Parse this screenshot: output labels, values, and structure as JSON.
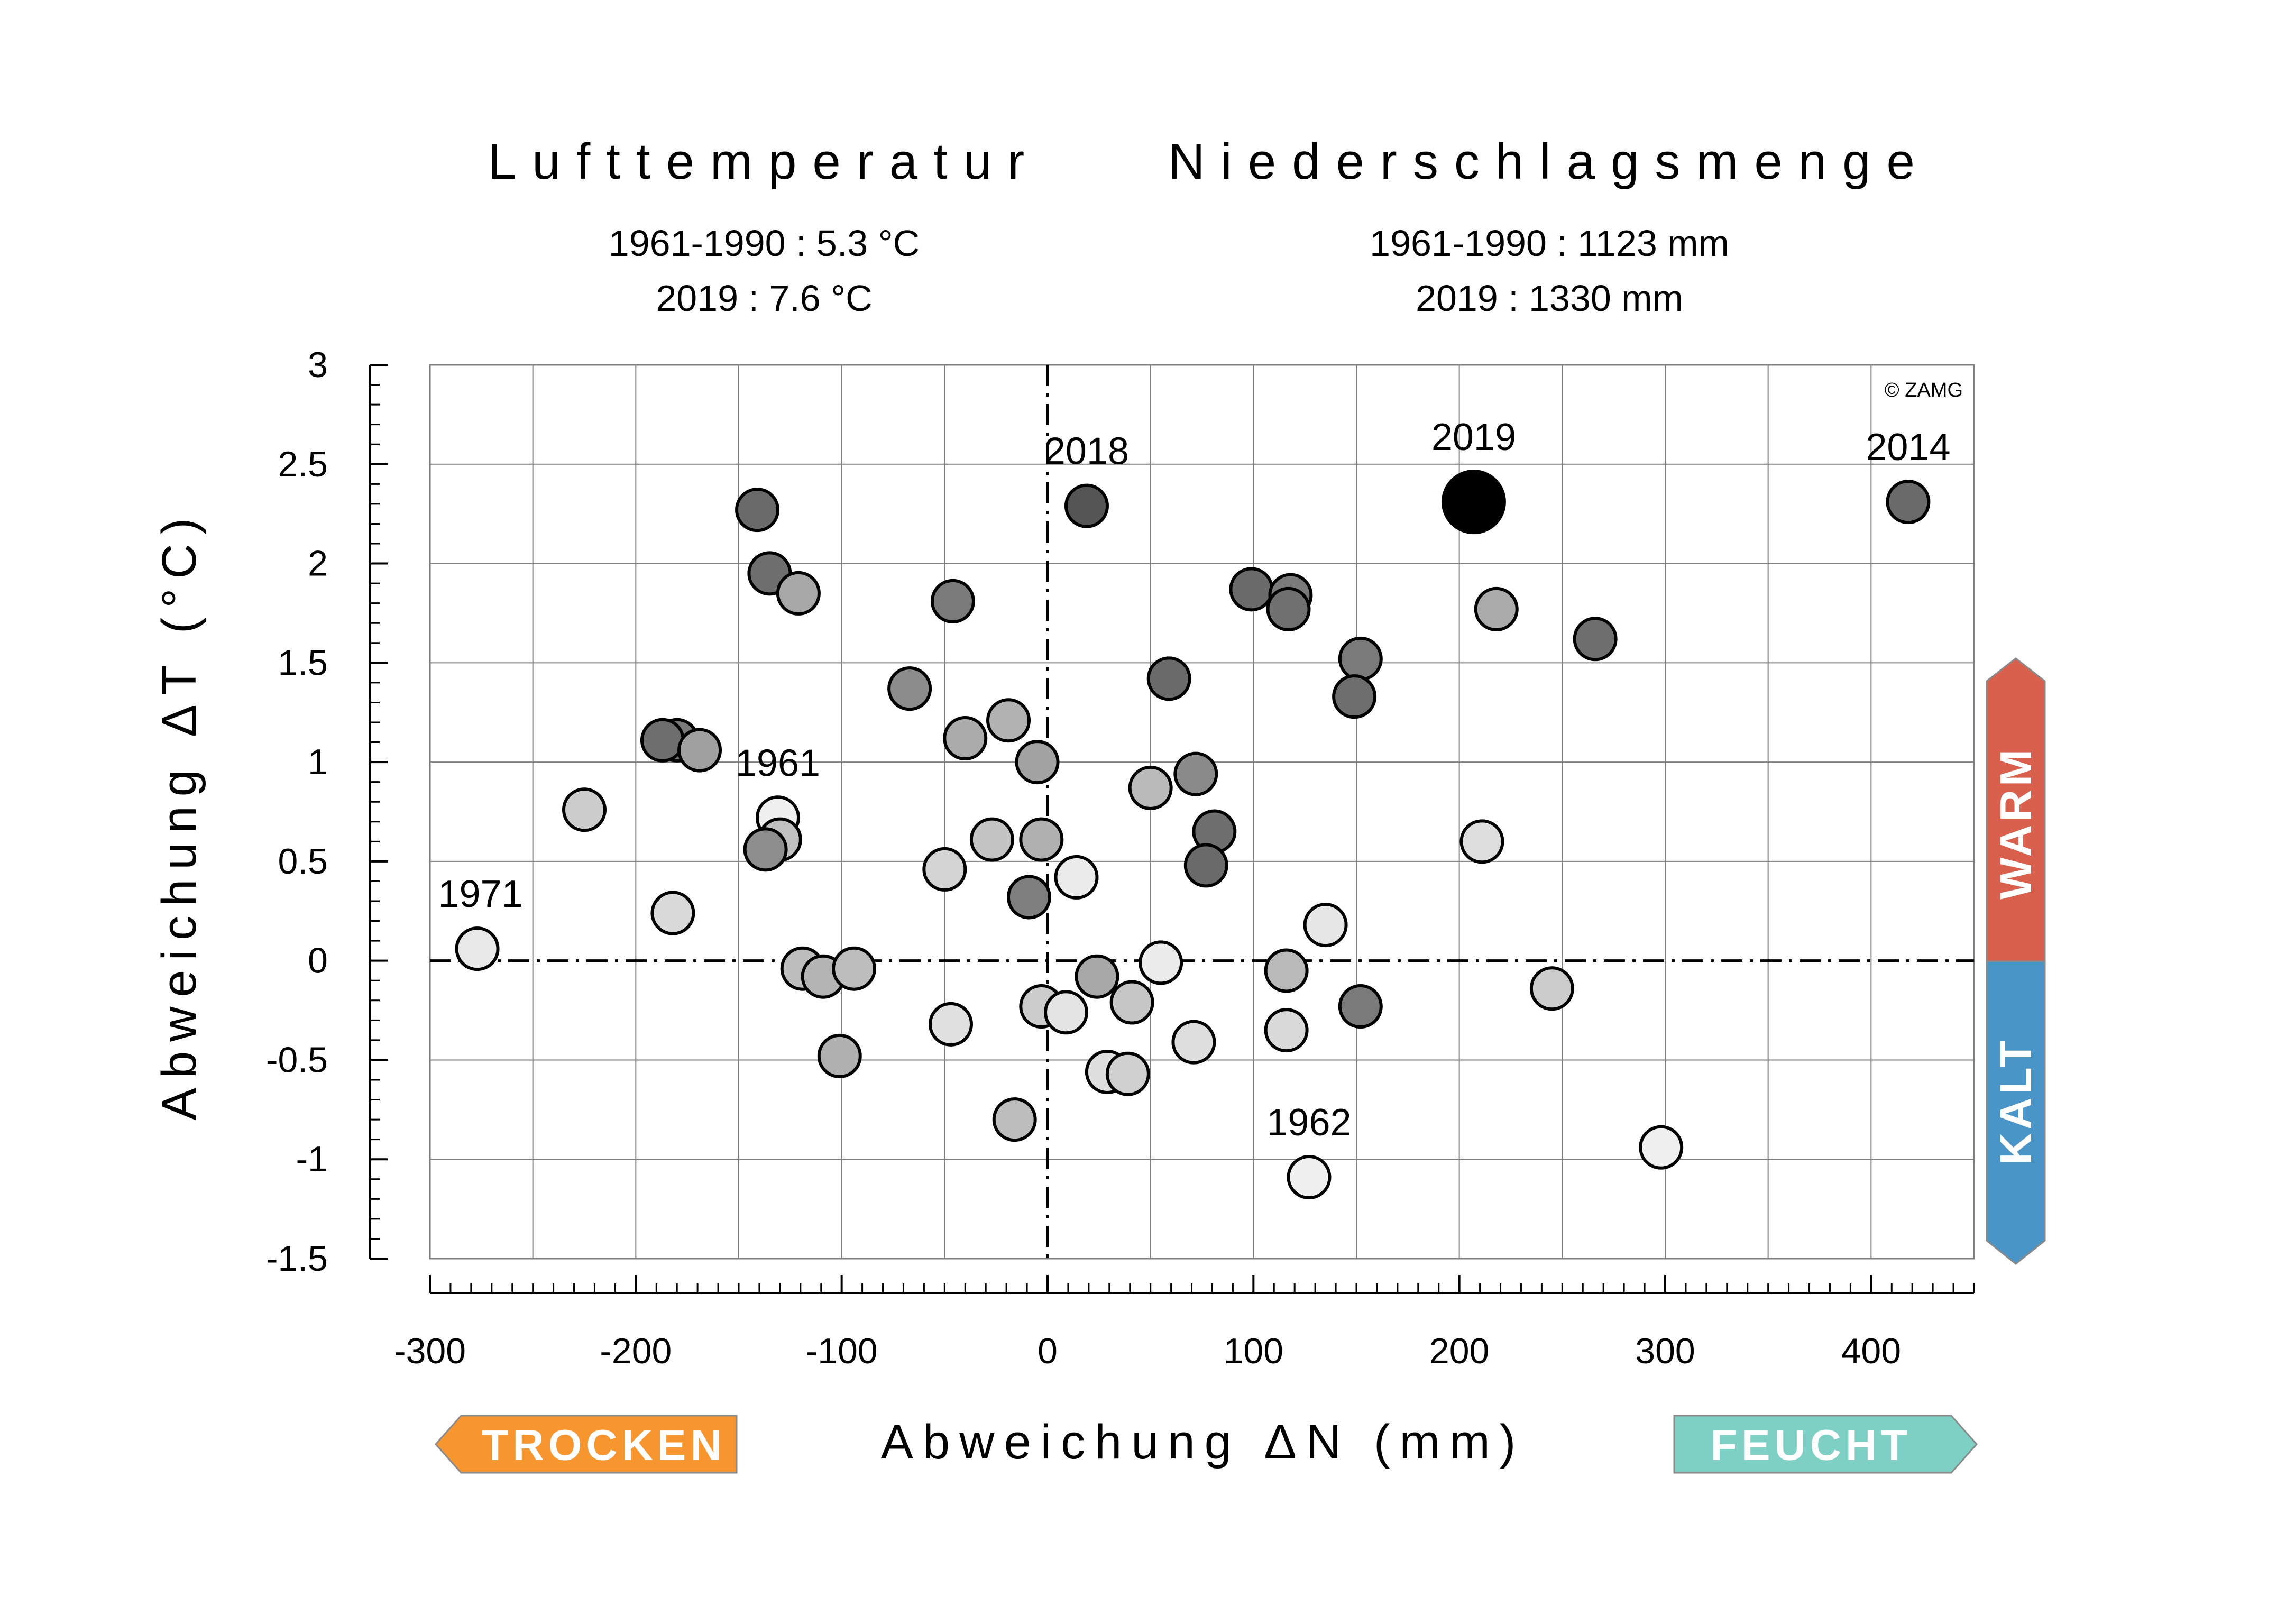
{
  "header": {
    "temp_title": "Lufttemperatur",
    "temp_ref": "1961-1990 : 5.3 °C",
    "temp_year": "2019 : 7.6 °C",
    "precip_title": "Niederschlagsmenge",
    "precip_ref": "1961-1990 : 1123 mm",
    "precip_year": "2019 : 1330 mm"
  },
  "copyright": "© ZAMG",
  "badges": {
    "warm": "WARM",
    "kalt": "KALT",
    "trocken": "TROCKEN",
    "feucht": "FEUCHT"
  },
  "colors": {
    "warm": "#d9604c",
    "kalt": "#4a95c7",
    "trocken": "#f7952f",
    "feucht": "#7fd0c4",
    "highlight": "#000000",
    "grid": "#7f7f7f"
  },
  "chart_data": {
    "type": "scatter",
    "xlabel": "Abweichung ΔN (mm)",
    "ylabel": "Abweichung ΔT (°C)",
    "xlim": [
      -300,
      450
    ],
    "ylim": [
      -1.5,
      3
    ],
    "xticks": [
      "-300",
      "-200",
      "-100",
      "0",
      "100",
      "200",
      "300",
      "400"
    ],
    "yticks": [
      "-1.5",
      "-1",
      "-0.5",
      "0",
      "0.5",
      "1",
      "1.5",
      "2",
      "2.5",
      "3"
    ],
    "grid": true,
    "points": [
      {
        "x": -277,
        "y": 0.06,
        "shade": "#e8e8e8",
        "label": "1971"
      },
      {
        "x": -225,
        "y": 0.76,
        "shade": "#cccccc"
      },
      {
        "x": -182,
        "y": 0.24,
        "shade": "#dadada"
      },
      {
        "x": -180,
        "y": 1.11,
        "shade": "#7a7a7a"
      },
      {
        "x": -187,
        "y": 1.11,
        "shade": "#6e6e6e"
      },
      {
        "x": -169,
        "y": 1.06,
        "shade": "#a0a0a0"
      },
      {
        "x": -141,
        "y": 2.27,
        "shade": "#6a6a6a"
      },
      {
        "x": -135,
        "y": 1.95,
        "shade": "#6e6e6e"
      },
      {
        "x": -121,
        "y": 1.85,
        "shade": "#a8a8a8"
      },
      {
        "x": -131,
        "y": 0.72,
        "shade": "#f0f0f0",
        "label": "1961"
      },
      {
        "x": -130,
        "y": 0.61,
        "shade": "#c0c0c0"
      },
      {
        "x": -137,
        "y": 0.56,
        "shade": "#8e8e8e"
      },
      {
        "x": -119,
        "y": -0.04,
        "shade": "#bdbdbd"
      },
      {
        "x": -109,
        "y": -0.08,
        "shade": "#b4b4b4"
      },
      {
        "x": -94,
        "y": -0.04,
        "shade": "#bdbdbd"
      },
      {
        "x": -101,
        "y": -0.48,
        "shade": "#b0b0b0"
      },
      {
        "x": -67,
        "y": 1.37,
        "shade": "#8c8c8c"
      },
      {
        "x": -46,
        "y": 1.81,
        "shade": "#7a7a7a"
      },
      {
        "x": -40,
        "y": 1.12,
        "shade": "#ababab"
      },
      {
        "x": -50,
        "y": 0.46,
        "shade": "#d4d4d4"
      },
      {
        "x": -47,
        "y": -0.32,
        "shade": "#e0e0e0"
      },
      {
        "x": -19,
        "y": 1.21,
        "shade": "#b2b2b2"
      },
      {
        "x": -27,
        "y": 0.61,
        "shade": "#c4c4c4"
      },
      {
        "x": -16,
        "y": -0.8,
        "shade": "#bdbdbd"
      },
      {
        "x": -5,
        "y": 1.0,
        "shade": "#a2a2a2"
      },
      {
        "x": -3,
        "y": 0.61,
        "shade": "#b0b0b0"
      },
      {
        "x": -9,
        "y": 0.32,
        "shade": "#7e7e7e"
      },
      {
        "x": -3,
        "y": -0.23,
        "shade": "#cccccc"
      },
      {
        "x": 9,
        "y": -0.26,
        "shade": "#e4e4e4"
      },
      {
        "x": 14,
        "y": 0.42,
        "shade": "#ececec"
      },
      {
        "x": 19,
        "y": 2.29,
        "shade": "#555555",
        "label": "2018"
      },
      {
        "x": 24,
        "y": -0.08,
        "shade": "#a8a8a8"
      },
      {
        "x": 29,
        "y": -0.56,
        "shade": "#dedede"
      },
      {
        "x": 39,
        "y": -0.57,
        "shade": "#d0d0d0"
      },
      {
        "x": 41,
        "y": -0.21,
        "shade": "#c6c6c6"
      },
      {
        "x": 50,
        "y": 0.87,
        "shade": "#bababa"
      },
      {
        "x": 55,
        "y": -0.01,
        "shade": "#ececec"
      },
      {
        "x": 59,
        "y": 1.42,
        "shade": "#6a6a6a"
      },
      {
        "x": 71,
        "y": -0.41,
        "shade": "#dedede"
      },
      {
        "x": 72,
        "y": 0.94,
        "shade": "#8a8a8a"
      },
      {
        "x": 81,
        "y": 0.65,
        "shade": "#6e6e6e"
      },
      {
        "x": 77,
        "y": 0.48,
        "shade": "#6a6a6a"
      },
      {
        "x": 99,
        "y": 1.87,
        "shade": "#6a6a6a"
      },
      {
        "x": 118,
        "y": 1.84,
        "shade": "#7a7a7a"
      },
      {
        "x": 117,
        "y": 1.77,
        "shade": "#707070"
      },
      {
        "x": 116,
        "y": -0.05,
        "shade": "#bababa"
      },
      {
        "x": 116,
        "y": -0.35,
        "shade": "#dadada"
      },
      {
        "x": 127,
        "y": -1.09,
        "shade": "#f0f0f0",
        "label": "1962"
      },
      {
        "x": 135,
        "y": 0.18,
        "shade": "#e6e6e6"
      },
      {
        "x": 152,
        "y": 1.52,
        "shade": "#7a7a7a"
      },
      {
        "x": 149,
        "y": 1.33,
        "shade": "#6e6e6e"
      },
      {
        "x": 152,
        "y": -0.23,
        "shade": "#7a7a7a"
      },
      {
        "x": 207,
        "y": 2.31,
        "shade": "#000000",
        "label": "2019",
        "highlight": true
      },
      {
        "x": 218,
        "y": 1.77,
        "shade": "#ababab"
      },
      {
        "x": 211,
        "y": 0.6,
        "shade": "#dedede"
      },
      {
        "x": 245,
        "y": -0.14,
        "shade": "#cccccc"
      },
      {
        "x": 266,
        "y": 1.62,
        "shade": "#6e6e6e"
      },
      {
        "x": 298,
        "y": -0.94,
        "shade": "#f0f0f0"
      },
      {
        "x": 418,
        "y": 2.31,
        "shade": "#6a6a6a",
        "label": "2014"
      }
    ]
  }
}
